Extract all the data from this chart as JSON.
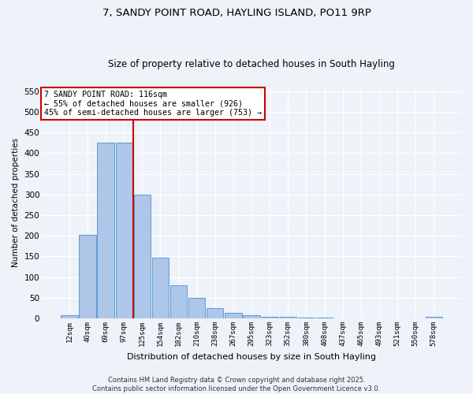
{
  "title_line1": "7, SANDY POINT ROAD, HAYLING ISLAND, PO11 9RP",
  "title_line2": "Size of property relative to detached houses in South Hayling",
  "bar_labels": [
    "12sqm",
    "40sqm",
    "69sqm",
    "97sqm",
    "125sqm",
    "154sqm",
    "182sqm",
    "210sqm",
    "238sqm",
    "267sqm",
    "295sqm",
    "323sqm",
    "352sqm",
    "380sqm",
    "408sqm",
    "437sqm",
    "465sqm",
    "493sqm",
    "521sqm",
    "550sqm",
    "578sqm"
  ],
  "bar_values": [
    8,
    202,
    425,
    425,
    300,
    148,
    80,
    50,
    25,
    13,
    8,
    5,
    4,
    3,
    2,
    1,
    0,
    0,
    0,
    0,
    4
  ],
  "bar_color": "#aec6e8",
  "bar_edge_color": "#5b9bd5",
  "ylabel": "Number of detached properties",
  "xlabel": "Distribution of detached houses by size in South Hayling",
  "ylim": [
    0,
    560
  ],
  "yticks": [
    0,
    50,
    100,
    150,
    200,
    250,
    300,
    350,
    400,
    450,
    500,
    550
  ],
  "vline_x": 3.5,
  "vline_color": "#cc0000",
  "annotation_text": "7 SANDY POINT ROAD: 116sqm\n← 55% of detached houses are smaller (926)\n45% of semi-detached houses are larger (753) →",
  "annotation_box_color": "#ffffff",
  "annotation_box_edge": "#cc0000",
  "footer_line1": "Contains HM Land Registry data © Crown copyright and database right 2025.",
  "footer_line2": "Contains public sector information licensed under the Open Government Licence v3.0.",
  "background_color": "#eef2f9",
  "grid_color": "#ffffff",
  "title_fontsize": 9.5,
  "subtitle_fontsize": 8.5
}
